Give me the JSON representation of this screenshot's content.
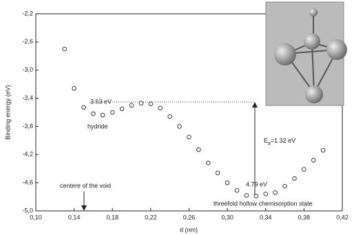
{
  "chart_data": {
    "type": "scatter",
    "x_label": "d (nm)",
    "y_label": "Binding energy (eV)",
    "x": [
      0.13,
      0.14,
      0.15,
      0.16,
      0.17,
      0.18,
      0.19,
      0.2,
      0.21,
      0.22,
      0.23,
      0.24,
      0.25,
      0.26,
      0.27,
      0.28,
      0.29,
      0.3,
      0.31,
      0.32,
      0.33,
      0.34,
      0.35,
      0.36,
      0.37,
      0.38,
      0.39,
      0.4
    ],
    "values": [
      -2.7,
      -3.26,
      -3.53,
      -3.62,
      -3.64,
      -3.6,
      -3.55,
      -3.5,
      -3.47,
      -3.48,
      -3.54,
      -3.66,
      -3.8,
      -3.95,
      -4.13,
      -4.32,
      -4.46,
      -4.6,
      -4.71,
      -4.78,
      -4.79,
      -4.76,
      -4.74,
      -4.65,
      -4.54,
      -4.41,
      -4.28,
      -4.14
    ],
    "color": "#222222",
    "xlim": [
      0.1,
      0.42
    ],
    "xticks": [
      {
        "value": 0.1,
        "label": "0,10"
      },
      {
        "value": 0.14,
        "label": "0,14"
      },
      {
        "value": 0.18,
        "label": "0,18"
      },
      {
        "value": 0.22,
        "label": "0,22"
      },
      {
        "value": 0.26,
        "label": "0,26"
      },
      {
        "value": 0.3,
        "label": "0,30"
      },
      {
        "value": 0.34,
        "label": "0,34"
      },
      {
        "value": 0.38,
        "label": "0,38"
      },
      {
        "value": 0.42,
        "label": "0,42"
      }
    ],
    "ylim": [
      -5.0,
      -2.2
    ],
    "yticks": [
      {
        "value": -5.0,
        "label": "-5,0"
      },
      {
        "value": -4.6,
        "label": "-4,6"
      },
      {
        "value": -4.2,
        "label": "-4,2"
      },
      {
        "value": -3.8,
        "label": "-3,8"
      },
      {
        "value": -3.4,
        "label": "-3,4"
      },
      {
        "value": -3.0,
        "label": "-3,0"
      },
      {
        "value": -2.6,
        "label": "-2,6"
      },
      {
        "value": -2.2,
        "label": "-2,2"
      }
    ],
    "annotations": {
      "hydride_energy": "3.63 eV",
      "hydride": "hydride",
      "ea_symbol": "E",
      "ea_sub": "a",
      "ea_value": "=1.32 eV",
      "hollow_energy": "4.79 eV",
      "void": "centere of the void",
      "hollow": "threefold hollow chemisorption state"
    }
  }
}
